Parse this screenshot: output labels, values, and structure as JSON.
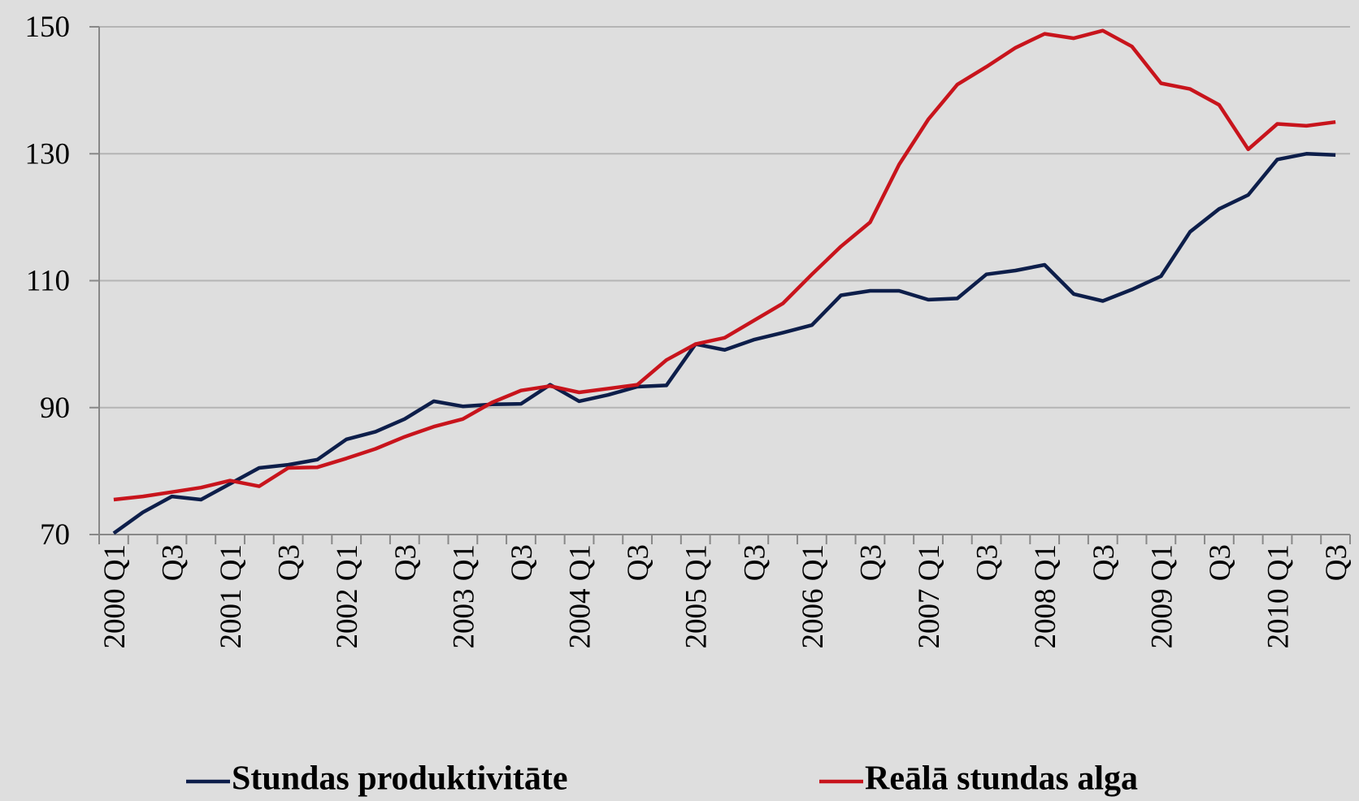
{
  "chart_data": {
    "type": "line",
    "categories": [
      "2000 Q1",
      null,
      "Q3",
      null,
      "2001 Q1",
      null,
      "Q3",
      null,
      "2002 Q1",
      null,
      "Q3",
      null,
      "2003 Q1",
      null,
      "Q3",
      null,
      "2004 Q1",
      null,
      "Q3",
      null,
      "2005 Q1",
      null,
      "Q3",
      null,
      "2006 Q1",
      null,
      "Q3",
      null,
      "2007 Q1",
      null,
      "Q3",
      null,
      "2008 Q1",
      null,
      "Q3",
      null,
      "2009 Q1",
      null,
      "Q3",
      null,
      "2010 Q1",
      null,
      "Q3"
    ],
    "series": [
      {
        "name": "Stundas produktivitāte",
        "color": "#0d1e4a",
        "values": [
          70.2,
          73.5,
          76,
          75.5,
          78,
          80.5,
          81,
          81.8,
          85,
          86.2,
          88.2,
          91,
          90.2,
          90.5,
          90.6,
          93.6,
          91,
          92,
          93.3,
          93.5,
          100,
          99.1,
          100.7,
          101.8,
          103,
          107.7,
          108.4,
          108.4,
          107,
          107.2,
          111,
          111.6,
          112.5,
          107.9,
          106.8,
          108.6,
          110.7,
          117.7,
          121.3,
          123.5,
          129.1,
          130,
          129.8
        ]
      },
      {
        "name": "Reālā stundas alga",
        "color": "#c8141c",
        "values": [
          75.5,
          76,
          76.7,
          77.4,
          78.5,
          77.6,
          80.5,
          80.6,
          82,
          83.5,
          85.4,
          87,
          88.2,
          90.8,
          92.7,
          93.4,
          92.4,
          93,
          93.6,
          97.5,
          100,
          101,
          103.7,
          106.4,
          111,
          115.4,
          119.2,
          128.3,
          135.4,
          140.9,
          143.7,
          146.7,
          148.9,
          148.2,
          149.4,
          146.9,
          141.1,
          140.2,
          137.7,
          130.7,
          134.7,
          134.4,
          135
        ]
      }
    ],
    "ylim": [
      70,
      150
    ],
    "yticks": [
      70,
      90,
      110,
      130,
      150
    ],
    "grid": true,
    "legend": "bottom"
  }
}
